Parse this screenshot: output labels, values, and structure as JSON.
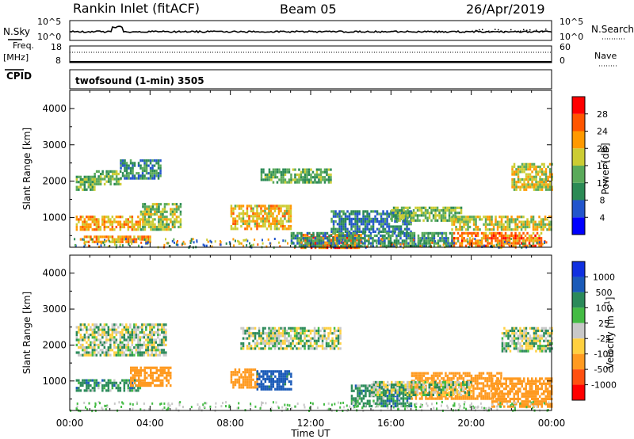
{
  "header": {
    "title": "Rankin Inlet (fitACF)",
    "beam": "Beam 05",
    "date": "26/Apr/2019"
  },
  "side_labels": {
    "nsky": "N.Sky",
    "nsearch": "N.Search",
    "freq": "Freq.",
    "freq_unit": "[MHz]",
    "nave": "Nave",
    "cpid": "CPID"
  },
  "cpid_text": "twofsound (1-min) 3505",
  "noise_panel": {
    "left_ticks": [
      "10^5",
      "10^0"
    ],
    "right_ticks": [
      "10^5",
      "10^0"
    ]
  },
  "freq_panel": {
    "left_ticks": [
      "18",
      "8"
    ],
    "right_ticks": [
      "60",
      "0"
    ],
    "freq_mhz": 10.5,
    "nave": 37
  },
  "colors": {
    "scale": [
      "#0000ff",
      "#2255cc",
      "#2b8a55",
      "#5aaa5a",
      "#cccc33",
      "#ff9900",
      "#ff5500",
      "#ff0000"
    ],
    "velocity_scale": [
      "#1030e0",
      "#1a5ab8",
      "#2b8a5a",
      "#44bb44",
      "#c8c8c8",
      "#ffd040",
      "#ff9a20",
      "#ff5010",
      "#ff0000"
    ],
    "gray": "#c8c8c8",
    "ground": "#707070"
  },
  "chart_data": [
    {
      "type": "heatmap",
      "title": "Power",
      "ylabel": "Slant Range [km]",
      "xlabel": "Time UT",
      "x_ticks": [
        "00:00",
        "04:00",
        "08:00",
        "12:00",
        "16:00",
        "20:00",
        "00:00"
      ],
      "xlim_hours": [
        0,
        24
      ],
      "y_ticks": [
        1000,
        2000,
        3000,
        4000
      ],
      "ylim_km": [
        180,
        4500
      ],
      "colorbar": {
        "label": "Power [dB]",
        "ticks": [
          4,
          8,
          12,
          16,
          20,
          24,
          28
        ],
        "range": [
          0,
          32
        ]
      },
      "regions": [
        {
          "t0": 0.3,
          "t1": 1.2,
          "r0": 1750,
          "r1": 2150,
          "v": 13
        },
        {
          "t0": 1.2,
          "t1": 2.5,
          "r0": 1900,
          "r1": 2300,
          "v": 14
        },
        {
          "t0": 2.5,
          "t1": 4.5,
          "r0": 2050,
          "r1": 2600,
          "v": 10
        },
        {
          "t0": 0.3,
          "t1": 3.5,
          "r0": 700,
          "r1": 1050,
          "v": 21
        },
        {
          "t0": 3.5,
          "t1": 5.5,
          "r0": 700,
          "r1": 1400,
          "v": 16
        },
        {
          "t0": 0.5,
          "t1": 4.0,
          "r0": 300,
          "r1": 500,
          "v": 22
        },
        {
          "t0": 8.0,
          "t1": 11.0,
          "r0": 700,
          "r1": 1350,
          "v": 20
        },
        {
          "t0": 9.5,
          "t1": 13.0,
          "r0": 1950,
          "r1": 2350,
          "v": 13
        },
        {
          "t0": 11.5,
          "t1": 14.5,
          "r0": 200,
          "r1": 550,
          "v": 25
        },
        {
          "t0": 13.0,
          "t1": 17.0,
          "r0": 600,
          "r1": 1200,
          "v": 9
        },
        {
          "t0": 16.0,
          "t1": 19.5,
          "r0": 900,
          "r1": 1300,
          "v": 15
        },
        {
          "t0": 19.0,
          "t1": 24.0,
          "r0": 700,
          "r1": 1050,
          "v": 18
        },
        {
          "t0": 19.0,
          "t1": 23.5,
          "r0": 250,
          "r1": 600,
          "v": 24
        },
        {
          "t0": 22.0,
          "t1": 24.0,
          "r0": 1800,
          "r1": 2500,
          "v": 18
        },
        {
          "t0": 11.0,
          "t1": 19.0,
          "r0": 200,
          "r1": 600,
          "v": 11
        }
      ]
    },
    {
      "type": "heatmap",
      "title": "Velocity",
      "ylabel": "Slant Range [km]",
      "xlabel": "Time UT",
      "x_ticks": [
        "00:00",
        "04:00",
        "08:00",
        "12:00",
        "16:00",
        "20:00",
        "00:00"
      ],
      "xlim_hours": [
        0,
        24
      ],
      "y_ticks": [
        1000,
        2000,
        3000,
        4000
      ],
      "ylim_km": [
        180,
        4500
      ],
      "colorbar": {
        "label": "Velocity [m s^-1]",
        "ticks": [
          1000,
          500,
          100,
          25,
          -25,
          -100,
          -500,
          -1000
        ]
      },
      "regions": [
        {
          "t0": 0.3,
          "t1": 4.8,
          "r0": 1700,
          "r1": 2600,
          "v": 0
        },
        {
          "t0": 8.5,
          "t1": 13.5,
          "r0": 1900,
          "r1": 2500,
          "v": 0
        },
        {
          "t0": 21.5,
          "t1": 24.0,
          "r0": 1800,
          "r1": 2500,
          "v": 0
        },
        {
          "t0": 0.3,
          "t1": 3.5,
          "r0": 700,
          "r1": 1050,
          "v": 60
        },
        {
          "t0": 3.0,
          "t1": 5.0,
          "r0": 900,
          "r1": 1400,
          "v": -200
        },
        {
          "t0": 8.0,
          "t1": 9.3,
          "r0": 800,
          "r1": 1350,
          "v": -300
        },
        {
          "t0": 9.3,
          "t1": 11.0,
          "r0": 800,
          "r1": 1300,
          "v": 150
        },
        {
          "t0": 14.0,
          "t1": 17.0,
          "r0": 300,
          "r1": 900,
          "v": 60
        },
        {
          "t0": 17.0,
          "t1": 21.5,
          "r0": 500,
          "r1": 1250,
          "v": -300
        },
        {
          "t0": 21.0,
          "t1": 24.0,
          "r0": 300,
          "r1": 1100,
          "v": -200
        },
        {
          "t0": 15.0,
          "t1": 20.0,
          "r0": 600,
          "r1": 1000,
          "v": 0
        }
      ]
    }
  ]
}
